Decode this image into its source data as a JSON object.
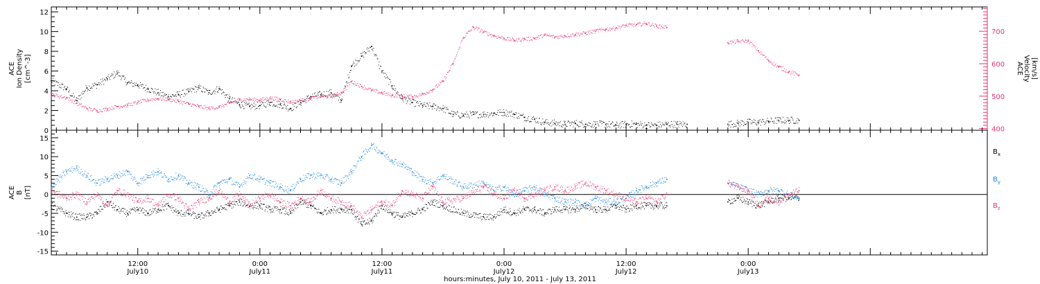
{
  "figure": {
    "x_axis_label": "hours:minutes, July 10, 2011 - July 13, 2011",
    "x_ticks": [
      {
        "time": "12:00",
        "date": "July10",
        "hours": 12
      },
      {
        "time": "0:00",
        "date": "July11",
        "hours": 24
      },
      {
        "time": "12:00",
        "date": "July11",
        "hours": 36
      },
      {
        "time": "0:00",
        "date": "July12",
        "hours": 48
      },
      {
        "time": "12:00",
        "date": "July12",
        "hours": 60
      },
      {
        "time": "0:00",
        "date": "July13",
        "hours": 72
      }
    ]
  },
  "colors": {
    "density": "#000000",
    "velocity": "#e8336a",
    "bx": "#000000",
    "by": "#1a85dd",
    "bz": "#e8336a"
  },
  "chart_data": [
    {
      "type": "scatter",
      "panel": "top",
      "ylabel_left": [
        "ACE",
        "Ion Density",
        "[cm^-3]"
      ],
      "ylabel_right": [
        "ACE",
        "Velocity",
        "[km/s]"
      ],
      "xlim": [
        3.5,
        95.5
      ],
      "ylim_left": [
        0,
        12.5
      ],
      "ylim_right": [
        395,
        775
      ],
      "left_ticks": [
        "0",
        "2",
        "4",
        "6",
        "8",
        "10",
        "12"
      ],
      "right_ticks": [
        "400",
        "500",
        "600",
        "700"
      ],
      "series": [
        {
          "axis": "left",
          "x": [
            3.5,
            5,
            6,
            7,
            8,
            9,
            10,
            11,
            12,
            13,
            14,
            15,
            16,
            17,
            18,
            19,
            20,
            21,
            22,
            23,
            24,
            25,
            26,
            27,
            28,
            29,
            30,
            31,
            32,
            33,
            34,
            35,
            36,
            37,
            38,
            39,
            40,
            41,
            42,
            43,
            44,
            45,
            46,
            47,
            48,
            49,
            50,
            51,
            52,
            53,
            54,
            55,
            56,
            57,
            58,
            59,
            60,
            61,
            62,
            63,
            64,
            65,
            66,
            70,
            71,
            72,
            73,
            74,
            75,
            76,
            77
          ],
          "values": [
            5.0,
            4.2,
            3.0,
            4.3,
            4.6,
            5.2,
            5.8,
            4.8,
            4.6,
            4.2,
            3.8,
            3.4,
            3.6,
            3.9,
            4.3,
            3.8,
            4.2,
            3.2,
            2.6,
            2.4,
            2.5,
            2.8,
            2.6,
            2.2,
            2.8,
            3.4,
            3.6,
            3.8,
            3.0,
            6.5,
            7.5,
            8.5,
            6.0,
            4.5,
            3.2,
            2.8,
            2.5,
            2.4,
            2.2,
            1.6,
            1.5,
            1.6,
            1.6,
            1.7,
            1.8,
            1.6,
            1.3,
            1.1,
            0.8,
            0.7,
            0.6,
            0.7,
            0.6,
            0.6,
            0.6,
            0.5,
            0.6,
            0.6,
            0.5,
            0.5,
            0.6,
            0.6,
            0.6,
            0.6,
            0.7,
            0.8,
            0.8,
            0.9,
            1.0,
            1.0,
            1.0
          ]
        },
        {
          "axis": "right",
          "x": [
            3.5,
            5,
            6,
            7,
            8,
            9,
            10,
            11,
            12,
            13,
            14,
            15,
            16,
            17,
            18,
            19,
            20,
            21,
            22,
            23,
            24,
            25,
            26,
            27,
            28,
            29,
            30,
            31,
            32,
            33,
            34,
            35,
            36,
            37,
            38,
            39,
            40,
            41,
            42,
            43,
            44,
            45,
            46,
            47,
            48,
            49,
            50,
            51,
            52,
            53,
            54,
            55,
            56,
            57,
            58,
            59,
            60,
            61,
            62,
            63,
            64,
            70,
            71,
            72,
            73,
            74,
            75,
            76,
            77
          ],
          "values": [
            505,
            495,
            478,
            462,
            455,
            460,
            468,
            472,
            480,
            488,
            492,
            490,
            484,
            476,
            468,
            462,
            466,
            478,
            488,
            490,
            488,
            494,
            490,
            482,
            486,
            492,
            500,
            498,
            510,
            545,
            530,
            518,
            510,
            502,
            500,
            498,
            506,
            520,
            545,
            600,
            680,
            712,
            698,
            686,
            678,
            672,
            676,
            678,
            688,
            682,
            686,
            690,
            694,
            700,
            706,
            710,
            718,
            720,
            724,
            716,
            712,
            665,
            668,
            670,
            640,
            610,
            590,
            575,
            565
          ]
        }
      ]
    },
    {
      "type": "scatter",
      "panel": "bottom",
      "ylabel_left": [
        "ACE",
        "B",
        "[nT]"
      ],
      "xlim": [
        3.5,
        95.5
      ],
      "ylim": [
        -16,
        17
      ],
      "left_ticks": [
        "-15",
        "-10",
        "-5",
        "0",
        "5",
        "10",
        "15"
      ],
      "series": [
        {
          "name": "Bx",
          "x": [
            3.5,
            5,
            6,
            7,
            8,
            9,
            10,
            11,
            12,
            13,
            14,
            15,
            16,
            17,
            18,
            19,
            20,
            21,
            22,
            23,
            24,
            25,
            26,
            27,
            28,
            29,
            30,
            31,
            32,
            33,
            34,
            35,
            36,
            37,
            38,
            39,
            40,
            41,
            42,
            44,
            46,
            47,
            48,
            49,
            50,
            51,
            52,
            53,
            54,
            55,
            56,
            57,
            58,
            59,
            60,
            61,
            62,
            63,
            64,
            70,
            71,
            72,
            73,
            74,
            75,
            76,
            77
          ],
          "values": [
            -3,
            -5,
            -6,
            -6,
            -5,
            -2,
            -4,
            -5,
            -4,
            -5,
            -4,
            -3,
            -5,
            -5,
            -6,
            -5,
            -4,
            -3,
            -2,
            -3,
            -3,
            -4,
            -4,
            -5,
            -2,
            -3,
            -5,
            -4,
            -4,
            -4,
            -8,
            -7,
            -3,
            -5,
            -6,
            -5,
            -4,
            -2,
            -3,
            -5,
            -6,
            -6,
            -4,
            -5,
            -4,
            -4,
            -5,
            -4,
            -4,
            -4,
            -3,
            -4,
            -4,
            -3,
            -4,
            -3,
            -3,
            -3,
            -3,
            -2,
            -1,
            -2,
            -3,
            -2,
            -1,
            -1,
            -1
          ]
        },
        {
          "name": "By",
          "x": [
            3.5,
            5,
            6,
            7,
            8,
            9,
            10,
            11,
            12,
            13,
            14,
            15,
            16,
            17,
            18,
            19,
            20,
            21,
            22,
            23,
            24,
            25,
            26,
            27,
            28,
            29,
            30,
            31,
            32,
            33,
            34,
            35,
            36,
            37,
            38,
            39,
            40,
            41,
            42,
            44,
            46,
            47,
            48,
            49,
            50,
            51,
            52,
            53,
            54,
            55,
            56,
            57,
            58,
            59,
            60,
            61,
            62,
            63,
            64,
            70,
            71,
            72,
            73,
            74,
            75,
            76,
            77
          ],
          "values": [
            2,
            6,
            7,
            5,
            3,
            4,
            5,
            6,
            3,
            5,
            6,
            4,
            5,
            3,
            2,
            0,
            3,
            4,
            2,
            5,
            4,
            3,
            2,
            1,
            4,
            5,
            5,
            4,
            3,
            6,
            10,
            13,
            11,
            9,
            8,
            6,
            4,
            3,
            5,
            2,
            3,
            1,
            2,
            0,
            1,
            2,
            0,
            -1,
            -2,
            -2,
            -3,
            -1,
            -2,
            -2,
            -1,
            1,
            2,
            3,
            4,
            3,
            2,
            1,
            0,
            1,
            1,
            0,
            -1
          ]
        },
        {
          "name": "Bz",
          "x": [
            3.5,
            5,
            6,
            7,
            8,
            9,
            10,
            11,
            12,
            13,
            14,
            15,
            16,
            17,
            18,
            19,
            20,
            21,
            22,
            23,
            24,
            25,
            26,
            27,
            28,
            29,
            30,
            31,
            32,
            33,
            34,
            35,
            36,
            37,
            38,
            39,
            40,
            41,
            42,
            44,
            46,
            47,
            48,
            49,
            50,
            51,
            52,
            53,
            54,
            55,
            56,
            57,
            58,
            59,
            60,
            61,
            62,
            63,
            64,
            70,
            71,
            72,
            73,
            74,
            75,
            76,
            77
          ],
          "values": [
            1,
            -1,
            0,
            -2,
            0,
            -3,
            1,
            0,
            -2,
            -1,
            -3,
            0,
            -1,
            -4,
            -2,
            -1,
            1,
            -2,
            0,
            -3,
            -1,
            0,
            -2,
            -3,
            -1,
            -2,
            1,
            -1,
            -2,
            -3,
            -6,
            -4,
            -2,
            -3,
            1,
            0,
            -1,
            2,
            -2,
            -1,
            2,
            0,
            -1,
            1,
            -1,
            0,
            1,
            2,
            1,
            2,
            3,
            2,
            1,
            0,
            -1,
            -2,
            -1,
            -2,
            0,
            3,
            2,
            1,
            -3,
            -1,
            -2,
            0,
            1
          ]
        }
      ],
      "legend": [
        "Bx",
        "By",
        "Bz"
      ]
    }
  ]
}
